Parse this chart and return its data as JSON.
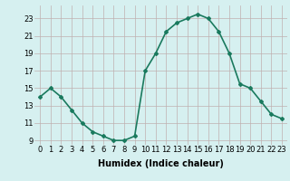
{
  "x": [
    0,
    1,
    2,
    3,
    4,
    5,
    6,
    7,
    8,
    9,
    10,
    11,
    12,
    13,
    14,
    15,
    16,
    17,
    18,
    19,
    20,
    21,
    22,
    23
  ],
  "y": [
    14.0,
    15.0,
    14.0,
    12.5,
    11.0,
    10.0,
    9.5,
    9.0,
    9.0,
    9.5,
    17.0,
    19.0,
    21.5,
    22.5,
    23.0,
    23.5,
    23.0,
    21.5,
    19.0,
    15.5,
    15.0,
    13.5,
    12.0,
    11.5
  ],
  "line_color": "#1a7a5e",
  "marker": "D",
  "marker_size": 2,
  "bg_color": "#d6f0f0",
  "grid_color": "#c0b0b0",
  "xlabel": "Humidex (Indice chaleur)",
  "xlabel_fontsize": 7,
  "ylabel_ticks": [
    9,
    11,
    13,
    15,
    17,
    19,
    21,
    23
  ],
  "xlim": [
    -0.5,
    23.5
  ],
  "ylim": [
    8.5,
    24.5
  ],
  "xticks": [
    0,
    1,
    2,
    3,
    4,
    5,
    6,
    7,
    8,
    9,
    10,
    11,
    12,
    13,
    14,
    15,
    16,
    17,
    18,
    19,
    20,
    21,
    22,
    23
  ],
  "tick_fontsize": 6,
  "linewidth": 1.2
}
